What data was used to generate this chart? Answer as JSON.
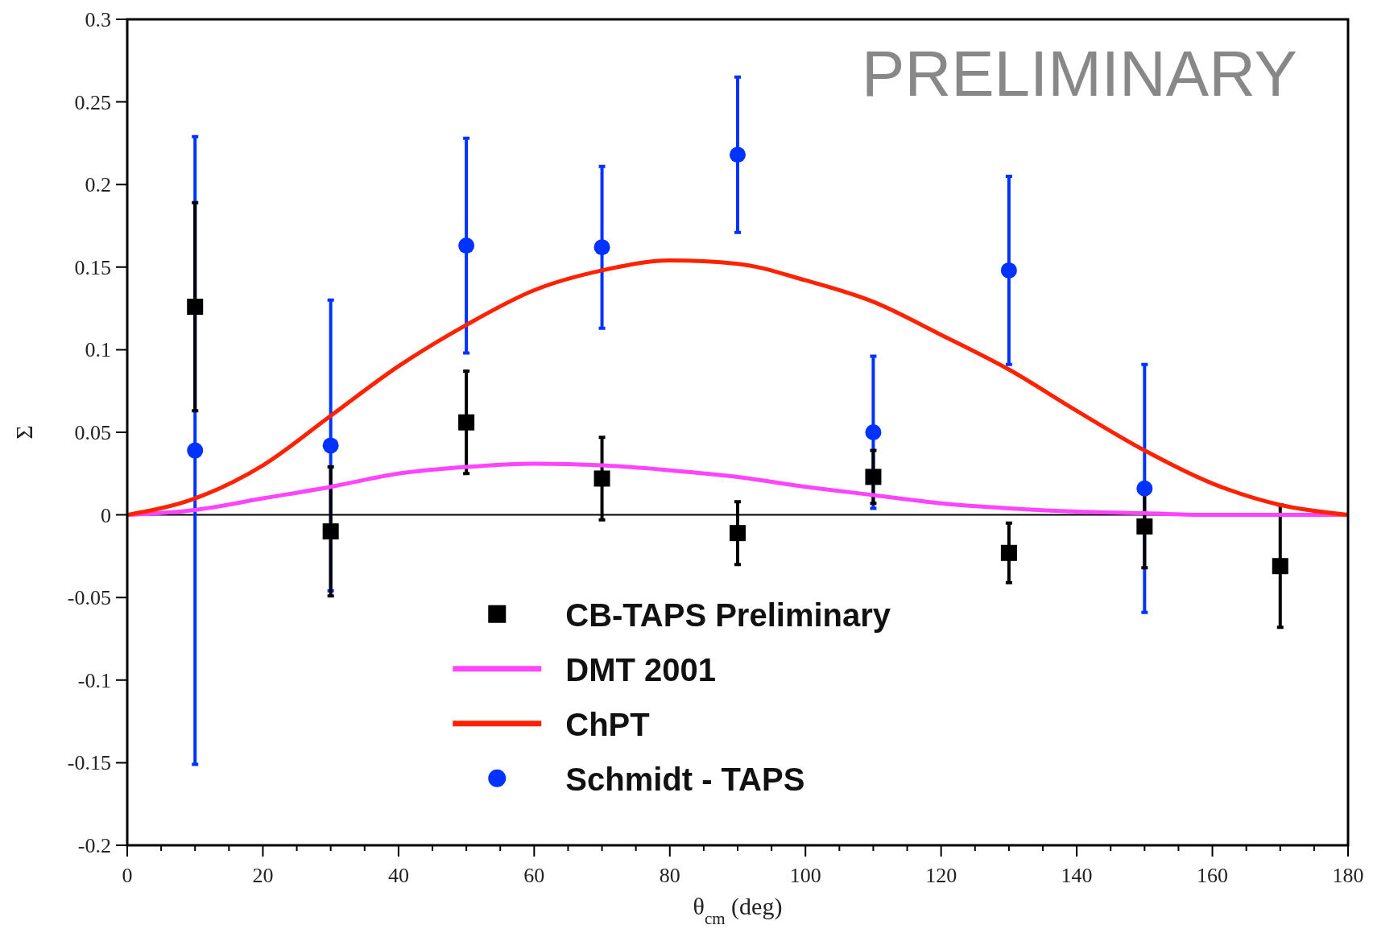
{
  "chart_data": {
    "type": "scatter",
    "xlabel": "θ$_{cm}$ (deg)",
    "ylabel": "Σ",
    "xlim": [
      0,
      180
    ],
    "xticks": [
      0,
      20,
      40,
      60,
      80,
      100,
      120,
      140,
      160,
      180
    ],
    "ylim": [
      -0.2,
      0.3
    ],
    "yticks": [
      -0.2,
      -0.15,
      -0.1,
      -0.05,
      0,
      0.05,
      0.1,
      0.15,
      0.2,
      0.25,
      0.3
    ],
    "grid": false,
    "legend": "bottom",
    "ref_lines": [
      {
        "axis": "y",
        "value": 0,
        "color": "#000000"
      }
    ],
    "annotations": [
      "PRELIMINARY"
    ],
    "series": [
      {
        "name": "CB-TAPS Preliminary",
        "type": "scatter",
        "marker": "square",
        "color": "#000000",
        "x": [
          10,
          30,
          50,
          70,
          90,
          110,
          130,
          150,
          170
        ],
        "values": [
          0.126,
          -0.01,
          0.056,
          0.022,
          -0.011,
          0.023,
          -0.023,
          -0.007,
          -0.031
        ],
        "errors": [
          0.063,
          0.039,
          0.031,
          0.025,
          0.019,
          0.016,
          0.018,
          0.025,
          0.037
        ]
      },
      {
        "name": "DMT 2001",
        "type": "line",
        "marker": "none",
        "line_style": "solid",
        "color": "#ff44ff",
        "x": [
          0,
          10,
          20,
          30,
          40,
          50,
          60,
          70,
          80,
          90,
          100,
          110,
          120,
          130,
          140,
          150,
          160,
          170,
          180
        ],
        "values": [
          0,
          0.003,
          0.01,
          0.017,
          0.025,
          0.029,
          0.031,
          0.03,
          0.027,
          0.023,
          0.017,
          0.012,
          0.007,
          0.004,
          0.002,
          0.001,
          0,
          0,
          0
        ]
      },
      {
        "name": "ChPT",
        "type": "line",
        "marker": "none",
        "line_style": "solid",
        "color": "#ff2200",
        "x": [
          0,
          10,
          20,
          30,
          40,
          50,
          60,
          70,
          80,
          90,
          100,
          110,
          120,
          130,
          140,
          150,
          160,
          170,
          180
        ],
        "values": [
          0,
          0.01,
          0.03,
          0.06,
          0.09,
          0.115,
          0.136,
          0.148,
          0.154,
          0.152,
          0.142,
          0.129,
          0.109,
          0.088,
          0.063,
          0.039,
          0.019,
          0.006,
          0
        ]
      },
      {
        "name": "Schmidt - TAPS",
        "type": "scatter",
        "marker": "circle",
        "color": "#0033ff",
        "x": [
          10,
          30,
          50,
          70,
          90,
          110,
          130,
          150
        ],
        "values": [
          0.039,
          0.042,
          0.163,
          0.162,
          0.218,
          0.05,
          0.148,
          0.016
        ],
        "errors": [
          0.19,
          0.088,
          0.065,
          0.049,
          0.047,
          0.046,
          0.057,
          0.075
        ]
      }
    ]
  }
}
